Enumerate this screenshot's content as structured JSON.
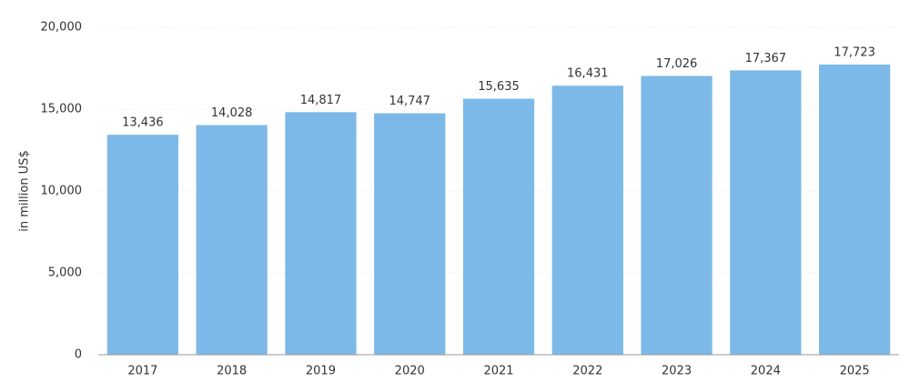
{
  "chart_data": {
    "type": "bar",
    "y_label": "in million US$",
    "categories": [
      "2017",
      "2018",
      "2019",
      "2020",
      "2021",
      "2022",
      "2023",
      "2024",
      "2025"
    ],
    "values": [
      13436,
      14028,
      14817,
      14747,
      15635,
      16431,
      17026,
      17367,
      17723
    ],
    "value_labels": [
      "13,436",
      "14,028",
      "14,817",
      "14,747",
      "15,635",
      "16,431",
      "17,026",
      "17,367",
      "17,723"
    ],
    "color": "#7cb9e8",
    "ylim": [
      0,
      20000
    ],
    "yticks": [
      0,
      {
        "value": 5000,
        "label": "5,000"
      },
      {
        "value": 10000,
        "label": "10,000"
      },
      {
        "value": 15000,
        "label": "15,000"
      },
      {
        "value": 20000,
        "label": "20,000"
      }
    ],
    "grid": true
  }
}
